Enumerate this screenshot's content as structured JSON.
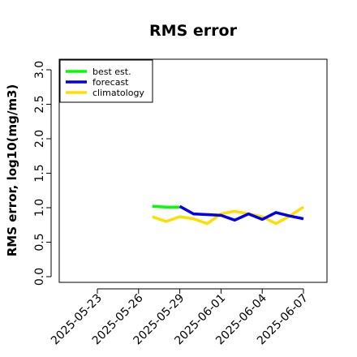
{
  "chart_data": {
    "type": "line",
    "title": "RMS error",
    "xlabel": "",
    "ylabel": "RMS error, log10(mg/m3)",
    "ylim": [
      0.0,
      3.0
    ],
    "yticks": [
      "0.0",
      "0.5",
      "1.0",
      "1.5",
      "2.0",
      "2.5",
      "3.0"
    ],
    "xlim": [
      "2025-05-21",
      "2025-06-08"
    ],
    "xticks": [
      "2025-05-23",
      "2025-05-26",
      "2025-05-29",
      "2025-06-01",
      "2025-06-04",
      "2025-06-07"
    ],
    "highlighted_xtick": "2025-05-29",
    "highlight_color": "#228B22",
    "legend_position": "top-left",
    "grid": false,
    "series": [
      {
        "name": "best est.",
        "color": "#00ff00",
        "x": [
          "2025-05-27",
          "2025-05-28",
          "2025-05-29"
        ],
        "values": [
          1.02,
          1.01,
          1.01
        ]
      },
      {
        "name": "forecast",
        "color": "#0000ee",
        "x": [
          "2025-05-29",
          "2025-05-30",
          "2025-05-31",
          "2025-06-01",
          "2025-06-02",
          "2025-06-03",
          "2025-06-04",
          "2025-06-05",
          "2025-06-06",
          "2025-06-07"
        ],
        "values": [
          1.02,
          0.91,
          0.9,
          0.89,
          0.82,
          0.91,
          0.83,
          0.93,
          0.88,
          0.84
        ]
      },
      {
        "name": "climatology",
        "color": "#ffdd00",
        "x": [
          "2025-05-27",
          "2025-05-28",
          "2025-05-29",
          "2025-05-30",
          "2025-05-31",
          "2025-06-01",
          "2025-06-02",
          "2025-06-03",
          "2025-06-04",
          "2025-06-05",
          "2025-06-06",
          "2025-06-07"
        ],
        "values": [
          0.87,
          0.8,
          0.87,
          0.84,
          0.77,
          0.91,
          0.95,
          0.91,
          0.87,
          0.77,
          0.88,
          1.01
        ]
      }
    ]
  }
}
